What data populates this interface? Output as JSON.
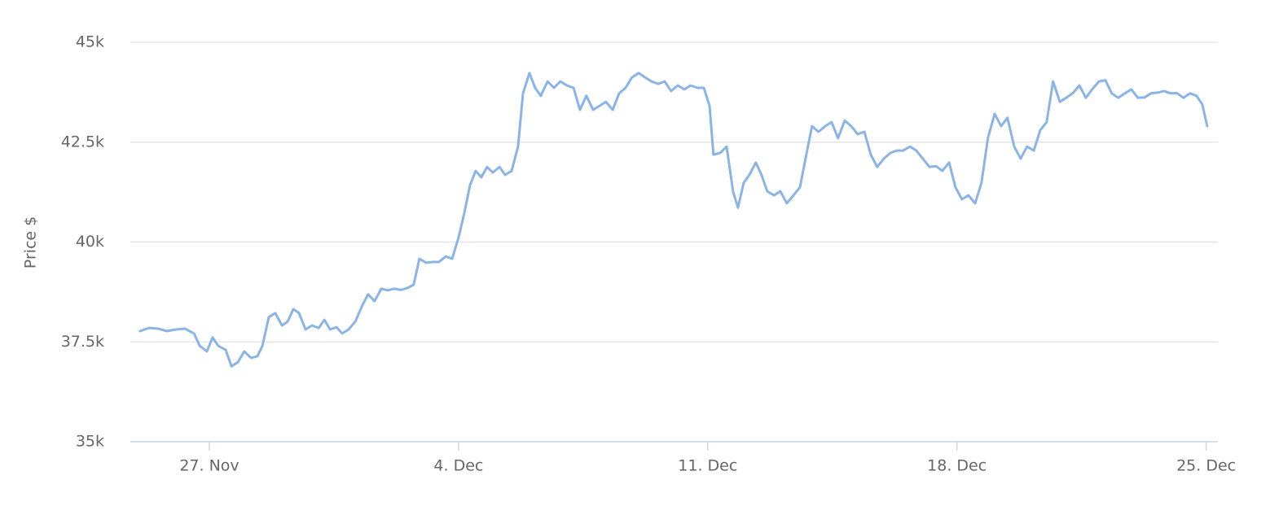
{
  "chart_data": {
    "type": "line",
    "y_label": "Price $",
    "color": "#8ab4e8",
    "grid": true,
    "xlim": [
      24.78,
      55.33
    ],
    "xticks": [
      {
        "value": 27,
        "label": "27. Nov"
      },
      {
        "value": 34,
        "label": "4. Dec"
      },
      {
        "value": 41,
        "label": "11. Dec"
      },
      {
        "value": 48,
        "label": "18. Dec"
      },
      {
        "value": 55,
        "label": "25. Dec"
      }
    ],
    "ylim": [
      35000,
      45000
    ],
    "yticks": [
      {
        "value": 35000,
        "label": "35k"
      },
      {
        "value": 37500,
        "label": "37.5k"
      },
      {
        "value": 40000,
        "label": "40k"
      },
      {
        "value": 42500,
        "label": "42.5k"
      },
      {
        "value": 45000,
        "label": "45k"
      }
    ],
    "x": [
      25.05,
      25.31,
      25.56,
      25.81,
      26.06,
      26.31,
      26.57,
      26.73,
      26.93,
      27.09,
      27.25,
      27.46,
      27.62,
      27.8,
      27.98,
      28.17,
      28.35,
      28.49,
      28.67,
      28.85,
      29.04,
      29.2,
      29.36,
      29.52,
      29.7,
      29.88,
      30.07,
      30.23,
      30.39,
      30.57,
      30.73,
      30.91,
      31.1,
      31.3,
      31.46,
      31.64,
      31.83,
      32.01,
      32.19,
      32.38,
      32.56,
      32.74,
      32.9,
      33.09,
      33.27,
      33.45,
      33.64,
      33.82,
      34.0,
      34.16,
      34.32,
      34.48,
      34.64,
      34.8,
      34.96,
      35.15,
      35.31,
      35.49,
      35.67,
      35.81,
      35.99,
      36.15,
      36.31,
      36.5,
      36.68,
      36.86,
      37.04,
      37.23,
      37.41,
      37.59,
      37.78,
      37.96,
      38.14,
      38.33,
      38.51,
      38.69,
      38.87,
      39.06,
      39.24,
      39.42,
      39.61,
      39.79,
      39.97,
      40.16,
      40.34,
      40.52,
      40.71,
      40.89,
      41.05,
      41.16,
      41.35,
      41.53,
      41.71,
      41.85,
      42.01,
      42.17,
      42.35,
      42.51,
      42.67,
      42.86,
      43.04,
      43.22,
      43.41,
      43.59,
      43.77,
      43.93,
      44.11,
      44.3,
      44.48,
      44.66,
      44.85,
      45.03,
      45.21,
      45.4,
      45.58,
      45.76,
      45.95,
      46.13,
      46.31,
      46.49,
      46.68,
      46.86,
      47.04,
      47.23,
      47.41,
      47.59,
      47.78,
      47.96,
      48.14,
      48.32,
      48.51,
      48.69,
      48.87,
      49.06,
      49.24,
      49.42,
      49.61,
      49.79,
      49.97,
      50.16,
      50.34,
      50.52,
      50.7,
      50.89,
      51.07,
      51.25,
      51.44,
      51.62,
      51.8,
      51.99,
      52.17,
      52.35,
      52.53,
      52.72,
      52.9,
      53.08,
      53.27,
      53.45,
      53.63,
      53.82,
      54.0,
      54.18,
      54.36,
      54.55,
      54.73,
      54.89,
      55.03
    ],
    "values": [
      37770,
      37850,
      37830,
      37770,
      37810,
      37830,
      37710,
      37400,
      37260,
      37610,
      37400,
      37300,
      36890,
      36990,
      37260,
      37100,
      37140,
      37400,
      38120,
      38220,
      37910,
      38010,
      38320,
      38220,
      37810,
      37910,
      37850,
      38050,
      37810,
      37870,
      37710,
      37810,
      38010,
      38420,
      38690,
      38520,
      38830,
      38790,
      38830,
      38800,
      38850,
      38930,
      39580,
      39480,
      39500,
      39500,
      39640,
      39580,
      40110,
      40720,
      41420,
      41780,
      41620,
      41880,
      41740,
      41880,
      41680,
      41780,
      42390,
      43720,
      44230,
      43860,
      43660,
      44020,
      43860,
      44020,
      43920,
      43860,
      43310,
      43660,
      43310,
      43410,
      43510,
      43310,
      43720,
      43860,
      44120,
      44230,
      44120,
      44020,
      43960,
      44020,
      43780,
      43920,
      43820,
      43920,
      43860,
      43860,
      43410,
      42190,
      42230,
      42390,
      41270,
      40860,
      41480,
      41680,
      41990,
      41680,
      41270,
      41170,
      41270,
      40970,
      41170,
      41370,
      42190,
      42900,
      42760,
      42900,
      43000,
      42600,
      43040,
      42900,
      42700,
      42760,
      42190,
      41880,
      42090,
      42230,
      42290,
      42290,
      42390,
      42290,
      42090,
      41880,
      41900,
      41780,
      41990,
      41370,
      41070,
      41170,
      40970,
      41480,
      42600,
      43210,
      42900,
      43110,
      42390,
      42090,
      42390,
      42290,
      42800,
      43000,
      44020,
      43510,
      43610,
      43720,
      43920,
      43610,
      43820,
      44020,
      44050,
      43720,
      43610,
      43720,
      43820,
      43610,
      43620,
      43720,
      43740,
      43780,
      43720,
      43730,
      43610,
      43720,
      43660,
      43450,
      42900
    ]
  }
}
